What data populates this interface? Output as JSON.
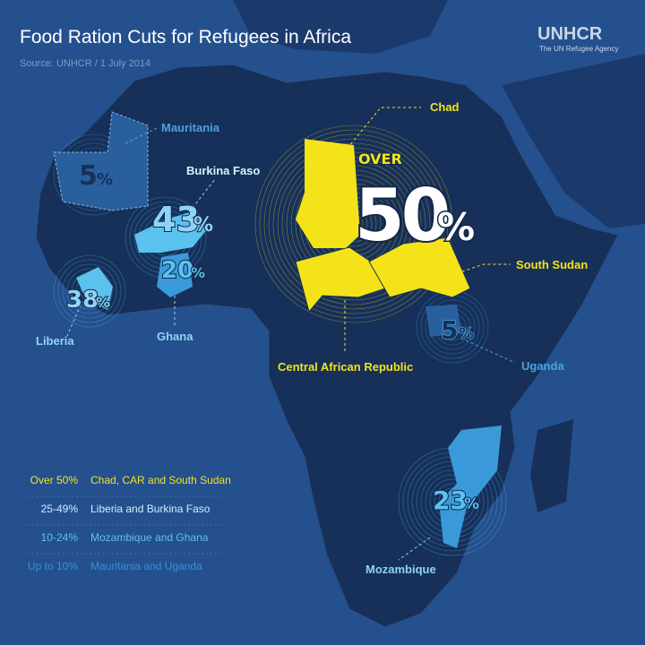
{
  "header": {
    "title": "Food Ration Cuts for Refugees in Africa",
    "source": "Source: UNHCR / 1 July 2014"
  },
  "logo": {
    "name": "UNHCR",
    "tagline": "The UN Refugee Agency"
  },
  "regions": [
    {
      "country": "Mauritania",
      "number": "5",
      "unit": "%"
    },
    {
      "country": "Burkina Faso",
      "number": "43",
      "unit": "%"
    },
    {
      "country": "Ghana",
      "number": "20",
      "unit": "%"
    },
    {
      "country": "Liberia",
      "number": "38",
      "unit": "%"
    },
    {
      "country": "Uganda",
      "number": "5",
      "unit": "%"
    },
    {
      "country": "Mozambique",
      "number": "23",
      "unit": "%"
    }
  ],
  "central": {
    "countries": [
      "Chad",
      "South Sudan",
      "Central African Republic"
    ],
    "prefix": "OVER",
    "number": "50",
    "unit": "%"
  },
  "legend": [
    {
      "range": "Over 50%",
      "countries": "Chad, CAR and South Sudan"
    },
    {
      "range": "25-49%",
      "countries": "Liberia and Burkina Faso"
    },
    {
      "range": "10-24%",
      "countries": "Mozambique and Ghana"
    },
    {
      "range": "Up to 10%",
      "countries": "Mauritania and Uganda"
    }
  ]
}
